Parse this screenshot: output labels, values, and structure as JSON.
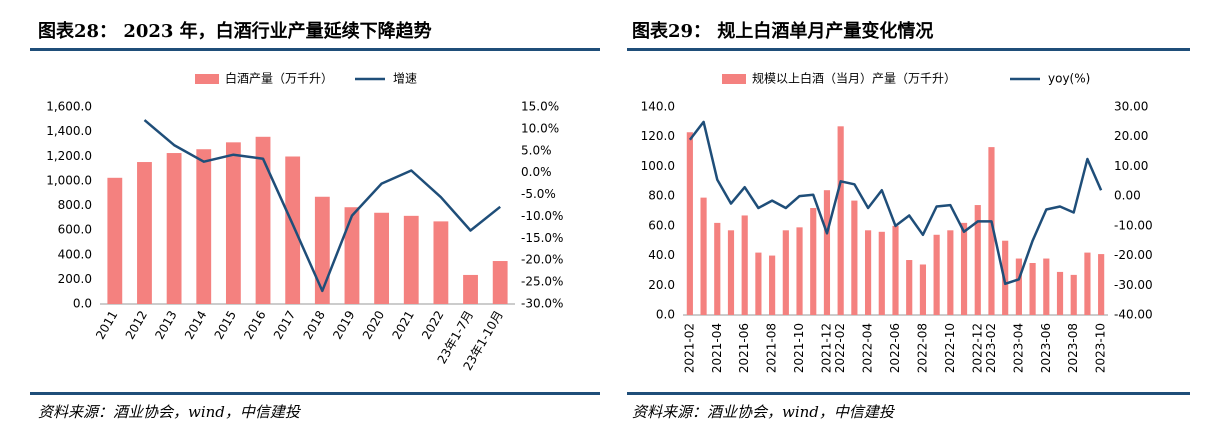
{
  "chart_data": [
    {
      "type": "bar",
      "title": "图表28：  2023 年，白酒行业产量延续下降趋势",
      "categories": [
        "2011",
        "2012",
        "2013",
        "2014",
        "2015",
        "2016",
        "2017",
        "2018",
        "2019",
        "2020",
        "2021",
        "2022",
        "23年1-7月",
        "23年1-10月"
      ],
      "series": [
        {
          "name": "白酒产量（万千升）",
          "type": "bar",
          "color": "#f4817f",
          "values": [
            1025,
            1153,
            1226,
            1257,
            1313,
            1358,
            1198,
            871,
            786,
            741,
            716,
            671,
            236,
            349
          ]
        },
        {
          "name": "增速",
          "type": "line",
          "axis": "y2",
          "color": "#1f4e79",
          "values": [
            null,
            12.0,
            6.3,
            2.5,
            4.1,
            3.2,
            -11.8,
            -27.0,
            -9.8,
            -2.5,
            0.5,
            -5.6,
            -13.2,
            -7.8
          ]
        }
      ],
      "ylim": [
        0,
        1600
      ],
      "yticks": [
        {
          "value": 0,
          "label": "0.0"
        },
        {
          "value": 200,
          "label": "200.0"
        },
        {
          "value": 400,
          "label": "400.0"
        },
        {
          "value": 600,
          "label": "600.0"
        },
        {
          "value": 800,
          "label": "800.0"
        },
        {
          "value": 1000,
          "label": "1,000.0"
        },
        {
          "value": 1200,
          "label": "1,200.0"
        },
        {
          "value": 1400,
          "label": "1,400.0"
        },
        {
          "value": 1600,
          "label": "1,600.0"
        }
      ],
      "y2lim": [
        -30,
        15
      ],
      "y2ticks": [
        {
          "value": -30,
          "label": "-30.0%"
        },
        {
          "value": -25,
          "label": "-25.0%"
        },
        {
          "value": -20,
          "label": "-20.0%"
        },
        {
          "value": -15,
          "label": "-15.0%"
        },
        {
          "value": -10,
          "label": "-10.0%"
        },
        {
          "value": -5,
          "label": "-5.0%"
        },
        {
          "value": 0,
          "label": "0.0%"
        },
        {
          "value": 5,
          "label": "5.0%"
        },
        {
          "value": 10,
          "label": "10.0%"
        },
        {
          "value": 15,
          "label": "15.0%"
        }
      ],
      "source": "资料来源：酒业协会，wind，中信建投"
    },
    {
      "type": "bar",
      "title": "图表29：  规上白酒单月产量变化情况",
      "categories": [
        "2021-02",
        null,
        "2021-04",
        null,
        "2021-06",
        null,
        "2021-08",
        null,
        "2021-10",
        null,
        "2021-12",
        "2022-02",
        null,
        "2022-04",
        null,
        "2022-06",
        null,
        "2022-08",
        null,
        "2022-10",
        null,
        "2022-12",
        "2023-02",
        null,
        "2023-04",
        null,
        "2023-06",
        null,
        "2023-08",
        null,
        "2023-10"
      ],
      "series": [
        {
          "name": "规模以上白酒（当月）产量（万千升）",
          "type": "bar",
          "color": "#f4817f",
          "values": [
            123,
            79,
            62,
            57,
            67,
            42,
            40,
            57,
            59,
            72,
            84,
            127,
            77,
            57,
            56,
            60,
            37,
            34,
            54,
            57,
            62,
            74,
            113,
            50,
            38,
            35,
            38,
            29,
            27,
            42,
            41
          ]
        },
        {
          "name": "yoy(%)",
          "type": "line",
          "axis": "y2",
          "color": "#1f4e79",
          "values": [
            19,
            25,
            5.5,
            -2.5,
            3,
            -4,
            -1.5,
            -4,
            0,
            0.5,
            -12.5,
            5,
            4,
            -4,
            2,
            -10,
            -6.5,
            -13,
            -3.5,
            -3,
            -12,
            -8.5,
            -8.5,
            -29.5,
            -28,
            -15,
            -4.5,
            -3.5,
            -5.5,
            12.5,
            2
          ]
        }
      ],
      "ylim": [
        0,
        140
      ],
      "yticks": [
        {
          "value": 0,
          "label": "0.0"
        },
        {
          "value": 20,
          "label": "20.0"
        },
        {
          "value": 40,
          "label": "40.0"
        },
        {
          "value": 60,
          "label": "60.0"
        },
        {
          "value": 80,
          "label": "80.0"
        },
        {
          "value": 100,
          "label": "100.0"
        },
        {
          "value": 120,
          "label": "120.0"
        },
        {
          "value": 140,
          "label": "140.0"
        }
      ],
      "y2lim": [
        -40,
        30
      ],
      "y2ticks": [
        {
          "value": -40,
          "label": "-40.00"
        },
        {
          "value": -30,
          "label": "-30.00"
        },
        {
          "value": -20,
          "label": "-20.00"
        },
        {
          "value": -10,
          "label": "-10.00"
        },
        {
          "value": 0,
          "label": "0.00"
        },
        {
          "value": 10,
          "label": "10.00"
        },
        {
          "value": 20,
          "label": "20.00"
        },
        {
          "value": 30,
          "label": "30.00"
        }
      ],
      "source": "资料来源：酒业协会，wind，中信建投"
    }
  ]
}
